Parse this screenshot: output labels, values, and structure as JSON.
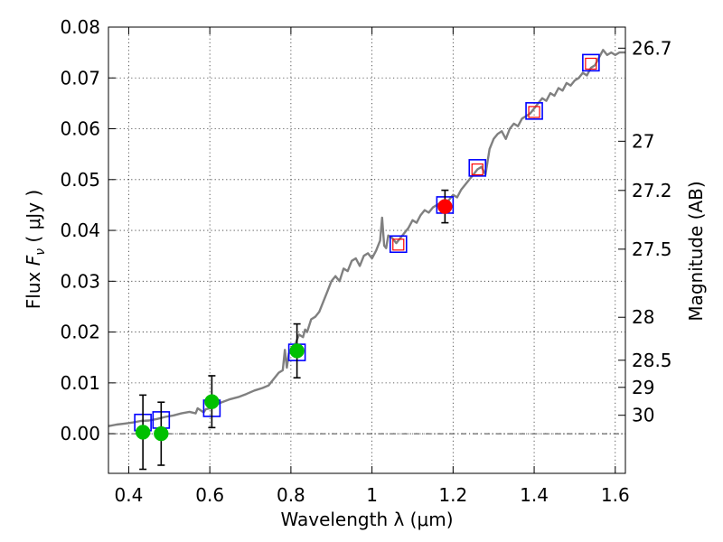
{
  "chart_data": {
    "type": "scatter",
    "title": "",
    "xlabel": "Wavelength  λ (μm)",
    "ylabel": "Flux  F_ν  ( μJy )",
    "ylabel_parts": {
      "prefix": "Flux  ",
      "symbol": "F",
      "sub": "ν",
      "suffix": "  ( μJy )"
    },
    "y2label": "Magnitude (AB)",
    "xlim": [
      0.35,
      1.625
    ],
    "ylim": [
      -0.0078,
      0.08
    ],
    "xticks": [
      {
        "value": 0.4,
        "label": "0.4"
      },
      {
        "value": 0.6,
        "label": "0.6"
      },
      {
        "value": 0.8,
        "label": "0.8"
      },
      {
        "value": 1.0,
        "label": "1"
      },
      {
        "value": 1.2,
        "label": "1.2"
      },
      {
        "value": 1.4,
        "label": "1.4"
      },
      {
        "value": 1.6,
        "label": "1.6"
      }
    ],
    "yticks": [
      {
        "value": 0.0,
        "label": "0.00"
      },
      {
        "value": 0.01,
        "label": "0.01"
      },
      {
        "value": 0.02,
        "label": "0.02"
      },
      {
        "value": 0.03,
        "label": "0.03"
      },
      {
        "value": 0.04,
        "label": "0.04"
      },
      {
        "value": 0.05,
        "label": "0.05"
      },
      {
        "value": 0.06,
        "label": "0.06"
      },
      {
        "value": 0.07,
        "label": "0.07"
      },
      {
        "value": 0.08,
        "label": "0.08"
      }
    ],
    "magnitude_ticks": [
      {
        "mag": 26.7,
        "label": "26.7"
      },
      {
        "mag": 27,
        "label": "27"
      },
      {
        "mag": 27.2,
        "label": "27.2"
      },
      {
        "mag": 27.5,
        "label": "27.5"
      },
      {
        "mag": 28,
        "label": "28"
      },
      {
        "mag": 28.5,
        "label": "28.5"
      },
      {
        "mag": 29,
        "label": "29"
      },
      {
        "mag": 30,
        "label": "30"
      }
    ],
    "grid": true,
    "series": [
      {
        "name": "Model spectrum",
        "kind": "line",
        "color": "#808080",
        "x": [
          0.35,
          0.37,
          0.39,
          0.41,
          0.43,
          0.45,
          0.47,
          0.49,
          0.51,
          0.53,
          0.55,
          0.565,
          0.57,
          0.585,
          0.59,
          0.6,
          0.61,
          0.63,
          0.65,
          0.67,
          0.69,
          0.71,
          0.73,
          0.745,
          0.75,
          0.76,
          0.77,
          0.78,
          0.785,
          0.79,
          0.795,
          0.8,
          0.81,
          0.82,
          0.83,
          0.835,
          0.84,
          0.85,
          0.86,
          0.87,
          0.88,
          0.89,
          0.9,
          0.91,
          0.92,
          0.93,
          0.94,
          0.95,
          0.96,
          0.97,
          0.98,
          0.99,
          1.0,
          1.01,
          1.02,
          1.025,
          1.03,
          1.035,
          1.04,
          1.05,
          1.06,
          1.07,
          1.08,
          1.09,
          1.1,
          1.11,
          1.12,
          1.13,
          1.14,
          1.15,
          1.16,
          1.17,
          1.18,
          1.19,
          1.2,
          1.21,
          1.22,
          1.23,
          1.24,
          1.25,
          1.26,
          1.27,
          1.28,
          1.29,
          1.3,
          1.31,
          1.32,
          1.33,
          1.34,
          1.35,
          1.36,
          1.37,
          1.38,
          1.39,
          1.4,
          1.41,
          1.42,
          1.43,
          1.44,
          1.45,
          1.46,
          1.47,
          1.48,
          1.49,
          1.5,
          1.51,
          1.52,
          1.53,
          1.54,
          1.55,
          1.56,
          1.57,
          1.58,
          1.59,
          1.6,
          1.61,
          1.625
        ],
        "y": [
          0.0015,
          0.0018,
          0.002,
          0.0022,
          0.0025,
          0.0026,
          0.0029,
          0.0033,
          0.0036,
          0.004,
          0.0043,
          0.004,
          0.005,
          0.0042,
          0.0048,
          0.005,
          0.0056,
          0.0062,
          0.0068,
          0.0072,
          0.0078,
          0.0085,
          0.009,
          0.0095,
          0.01,
          0.011,
          0.012,
          0.0125,
          0.0165,
          0.013,
          0.0158,
          0.016,
          0.0175,
          0.0195,
          0.019,
          0.0205,
          0.02,
          0.0225,
          0.023,
          0.024,
          0.026,
          0.028,
          0.03,
          0.031,
          0.03,
          0.0325,
          0.032,
          0.034,
          0.0345,
          0.033,
          0.035,
          0.0355,
          0.0345,
          0.036,
          0.038,
          0.0425,
          0.037,
          0.0365,
          0.039,
          0.0385,
          0.0375,
          0.0385,
          0.0395,
          0.0405,
          0.042,
          0.0415,
          0.043,
          0.044,
          0.0435,
          0.0445,
          0.045,
          0.0455,
          0.044,
          0.046,
          0.047,
          0.0465,
          0.048,
          0.049,
          0.05,
          0.051,
          0.052,
          0.0525,
          0.051,
          0.056,
          0.058,
          0.059,
          0.0595,
          0.058,
          0.06,
          0.061,
          0.0605,
          0.062,
          0.0625,
          0.063,
          0.064,
          0.065,
          0.066,
          0.0655,
          0.067,
          0.0665,
          0.068,
          0.0675,
          0.069,
          0.0685,
          0.0695,
          0.07,
          0.071,
          0.0705,
          0.072,
          0.0725,
          0.074,
          0.0755,
          0.0745,
          0.075,
          0.0745,
          0.075,
          0.075
        ]
      },
      {
        "name": "Model photometry (blue squares)",
        "kind": "square",
        "color": "#0000ff",
        "x": [
          0.435,
          0.48,
          0.605,
          0.815,
          1.065,
          1.18,
          1.26,
          1.4,
          1.54
        ],
        "y": [
          0.0022,
          0.0027,
          0.005,
          0.016,
          0.0373,
          0.045,
          0.0523,
          0.0635,
          0.073
        ]
      },
      {
        "name": "Observed upper limits (red squares)",
        "kind": "small-square",
        "color": "#ff0000",
        "x": [
          1.065,
          1.26,
          1.4,
          1.54
        ],
        "y": [
          0.0372,
          0.052,
          0.0633,
          0.0728
        ]
      },
      {
        "name": "Observed flux (green)",
        "kind": "circle",
        "color": "#00c000",
        "x": [
          0.435,
          0.48,
          0.605,
          0.815
        ],
        "y": [
          0.0003,
          0.0,
          0.0063,
          0.0163
        ],
        "yerr": [
          0.0073,
          0.0062,
          0.0051,
          0.0053
        ]
      },
      {
        "name": "Observed flux (red)",
        "kind": "circle",
        "color": "#ff0000",
        "x": [
          1.18
        ],
        "y": [
          0.0447
        ],
        "yerr": [
          0.0032
        ]
      }
    ]
  }
}
